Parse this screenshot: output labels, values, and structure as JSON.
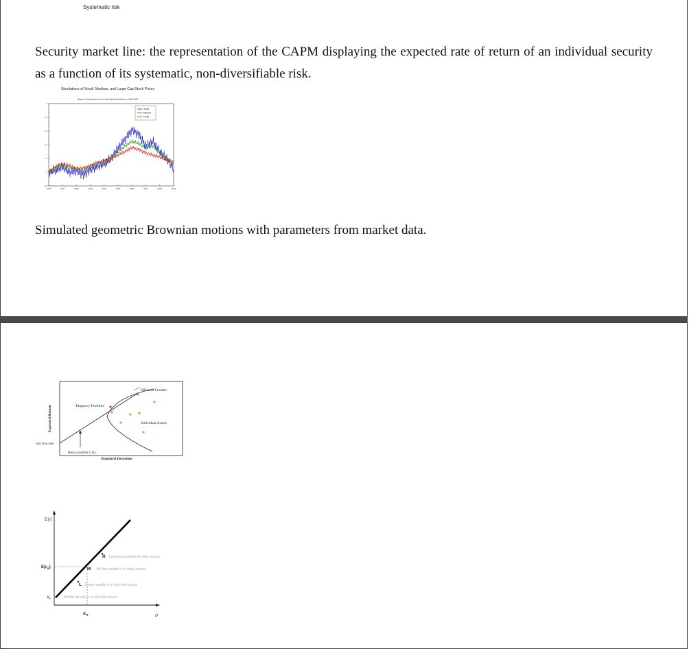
{
  "page1": {
    "top_label": "Systematic risk",
    "paragraph": "Security market line: the representation of the CAPM displaying the expected rate of return of an individual security as a function of its systematic, non-diversifiable risk.",
    "caption": "Simulated geometric Brownian motions with parameters from market data."
  },
  "chart_data": [
    {
      "type": "line",
      "title": "Simulations of Small, Medium, and Large-Cap Stock Prices",
      "subtitle": "Based on Parameters From Monthly Stock Returns 1926-2008",
      "x_ticks": [
        "2000",
        "2001",
        "2002",
        "2003",
        "2004",
        "2005",
        "2006",
        "2007",
        "2008",
        "2009"
      ],
      "y_ticks": [
        "0.8",
        "1",
        "1.2",
        "1.4",
        "1.6",
        "1.8",
        "2"
      ],
      "ylim": [
        0.8,
        2.0
      ],
      "legend_position": "top-right",
      "series": [
        {
          "name": "Small",
          "color": "#1a1acc",
          "x": [
            2000,
            2000.5,
            2001,
            2001.5,
            2002,
            2002.5,
            2003,
            2003.5,
            2004,
            2004.5,
            2005,
            2005.5,
            2006,
            2006.5,
            2007,
            2007.5,
            2008,
            2008.5,
            2009
          ],
          "values": [
            1.0,
            1.03,
            1.08,
            1.0,
            1.02,
            0.96,
            1.04,
            1.08,
            1.12,
            1.2,
            1.35,
            1.48,
            1.62,
            1.55,
            1.38,
            1.45,
            1.3,
            1.2,
            1.05
          ]
        },
        {
          "name": "Medium",
          "color": "#1a9a1a",
          "x": [
            2000,
            2000.5,
            2001,
            2001.5,
            2002,
            2002.5,
            2003,
            2003.5,
            2004,
            2004.5,
            2005,
            2005.5,
            2006,
            2006.5,
            2007,
            2007.5,
            2008,
            2008.5,
            2009
          ],
          "values": [
            1.0,
            1.05,
            1.1,
            1.07,
            1.05,
            1.02,
            1.08,
            1.12,
            1.15,
            1.22,
            1.3,
            1.38,
            1.45,
            1.42,
            1.35,
            1.38,
            1.28,
            1.18,
            1.12
          ]
        },
        {
          "name": "Large",
          "color": "#dd1a1a",
          "x": [
            2000,
            2000.5,
            2001,
            2001.5,
            2002,
            2002.5,
            2003,
            2003.5,
            2004,
            2004.5,
            2005,
            2005.5,
            2006,
            2006.5,
            2007,
            2007.5,
            2008,
            2008.5,
            2009
          ],
          "values": [
            1.0,
            1.08,
            1.12,
            1.1,
            1.05,
            1.06,
            1.1,
            1.14,
            1.17,
            1.2,
            1.25,
            1.3,
            1.36,
            1.33,
            1.28,
            1.25,
            1.22,
            1.18,
            1.15
          ]
        }
      ]
    }
  ],
  "frontier": {
    "labels": {
      "efficient_frontier": "Efficient Frontier",
      "tangency_portfolio": "Tangency Portfolio",
      "individual_assets": "Individual Assets",
      "best_cal": "Best possible CAL",
      "x_axis": "Standard Deviation",
      "y_axis": "Expected Return",
      "risk_free": "risk free rate"
    },
    "asset_color": "#d8c200"
  },
  "sml": {
    "labels": {
      "y_axis": "E(r)",
      "x_axis": "σ",
      "e_rm": "E(r",
      "e_rm_sub": "M",
      "e_rm_close": ")",
      "rf": "r",
      "rf_sub": "F",
      "sigma_m": "σ",
      "sigma_m_sub": "M",
      "point_r": "R",
      "point_m": "M",
      "point_l": "L",
      "desc_r": "Levered portfolio of risky assets",
      "desc_m": "All the wealth is in risky assets",
      "desc_l": "Some wealth is in risk-free asset",
      "desc_rf": "All the wealth is in risk-free asset"
    }
  }
}
